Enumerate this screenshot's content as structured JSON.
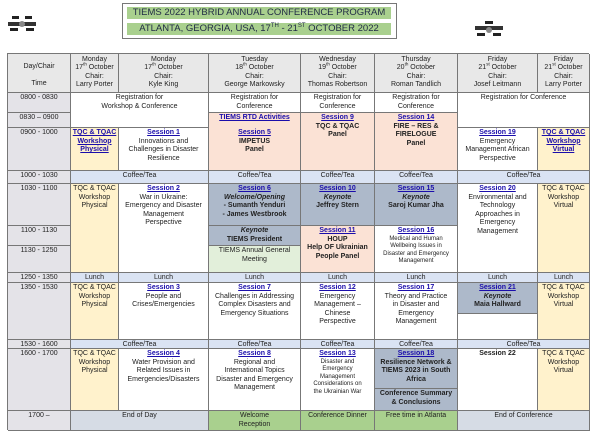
{
  "title": {
    "line1": "TIEMS 2022 HYBRID ANNUAL CONFERENCE PROGRAM",
    "line2_a": "ATLANTA, GEORGIA, USA, 17",
    "line2_sup1": "TH",
    "line2_b": " - 21",
    "line2_sup2": "ST",
    "line2_c": " OCTOBER 2022"
  },
  "colors": {
    "session_link": "#1a0dab",
    "workshop": "#fff2cc",
    "panel": "#fbe2d5",
    "keynote": "#adb9ca",
    "coffee": "#dae3f3",
    "social": "#a9d08e",
    "title_bar": "#a9d08e"
  },
  "header": {
    "corner": {
      "top": "Day/Chair",
      "bottom": "Time"
    },
    "days": [
      {
        "day": "Monday",
        "num": "17",
        "sfx": "th",
        "month": " October",
        "chair_label": "Chair:",
        "chair": "Larry Porter"
      },
      {
        "day": "Monday",
        "num": "17",
        "sfx": "th",
        "month": " October",
        "chair_label": "Chair:",
        "chair": "Kyle King"
      },
      {
        "day": "Tuesday",
        "num": "18",
        "sfx": "th",
        "month": " October",
        "chair_label": "Chair:",
        "chair": "George Markowsky"
      },
      {
        "day": "Wednesday",
        "num": "19",
        "sfx": "th",
        "month": " October",
        "chair_label": "Chair:",
        "chair": "Thomas Robertson"
      },
      {
        "day": "Thursday",
        "num": "20",
        "sfx": "th",
        "month": " October",
        "chair_label": "Chair:",
        "chair": "Roman Tandlich"
      },
      {
        "day": "Friday",
        "num": "21",
        "sfx": "st",
        "month": " October",
        "chair_label": "Chair:",
        "chair": "Josef Leitmann"
      },
      {
        "day": "Friday",
        "num": "21",
        "sfx": "st",
        "month": " October",
        "chair_label": "Chair:",
        "chair": "Larry Porter"
      }
    ]
  },
  "times": [
    "0800 - 0830",
    "0830 – 0900",
    "0900 - 1000",
    "1000 - 1030",
    "1030 - 1100",
    "1100 - 1130",
    "1130 - 1250",
    "1250 - 1350",
    "1350 - 1530",
    "1530 - 1600",
    "1600 - 1700",
    "1700 –"
  ],
  "cells": {
    "reg_mon": {
      "text": "Registration for\nWorkshop & Conference"
    },
    "reg_tue": {
      "text": "Registration for\nConference"
    },
    "reg_wed": {
      "text": "Registration for\nConference"
    },
    "reg_thu": {
      "text": "Registration for\nConference"
    },
    "reg_fri": {
      "text": "Registration for Conference"
    },
    "rtd": {
      "link": "TIEMS RTD Activities"
    },
    "s5": {
      "link": "Session 5",
      "bold": "IMPETUS\nPanel"
    },
    "s9": {
      "link": "Session 9",
      "bold": "TQC & TQAC\nPanel"
    },
    "s14": {
      "link": "Session 14",
      "bold": "FIRE – RES &\nFIRELOGUE\nPanel"
    },
    "tqc_m_0900": {
      "link": "TQC & TQAC\nWorkshop\nPhysical"
    },
    "s1": {
      "link": "Session 1",
      "text": "Innovations and\nChallenges in Disaster\nResilience"
    },
    "s19": {
      "link": "Session 19",
      "text": "Emergency\nManagement African\nPerspective"
    },
    "tqc_f_0900": {
      "link": "TQC & TQAC\nWorkshop\nVirtual"
    },
    "coffee_mon_1": {
      "text": "Coffee/Tea"
    },
    "coffee_tue_1": {
      "text": "Coffee/Tea"
    },
    "coffee_wed_1": {
      "text": "Coffee/Tea"
    },
    "coffee_thu_1": {
      "text": "Coffee/Tea"
    },
    "coffee_fri_1": {
      "text": "Coffee/Tea"
    },
    "tqc_m_1030": {
      "text": "TQC & TQAC\nWorkshop\nPhysical"
    },
    "s2": {
      "link": "Session 2",
      "text": "War in Ukraine:\nEmergency and Disaster\nManagement\nPerspective"
    },
    "s6": {
      "link": "Session 6",
      "italic": "Welcome/Opening",
      "bold": "- Sumanth Yenduri\n- James Westbrook"
    },
    "tue_keynote": {
      "italic": "Keynote",
      "bold": "TIEMS President"
    },
    "agm": {
      "text": "TIEMS Annual General\nMeeting"
    },
    "s10": {
      "link": "Session 10",
      "italic": "Keynote",
      "bold": "Jeffrey Stern"
    },
    "s11": {
      "link": "Session 11",
      "bold": "HOUP\nHelp OF Ukrainian\nPeople Panel"
    },
    "s15": {
      "link": "Session 15",
      "italic": "Keynote",
      "bold": "Saroj Kumar Jha"
    },
    "s16": {
      "link": "Session 16",
      "small": "Medical and Human\nWellbeing Issues in\nDisaster and Emergency\nManagement"
    },
    "s20": {
      "link": "Session 20",
      "text": "Environmental and\nTechnology\nApproaches in\nEmergency\nManagement"
    },
    "tqc_f_1030": {
      "text": "TQC & TQAC\nWorkshop\nVirtual"
    },
    "lunch_m1": {
      "text": "Lunch"
    },
    "lunch_m2": {
      "text": "Lunch"
    },
    "lunch_tu": {
      "text": "Lunch"
    },
    "lunch_w": {
      "text": "Lunch"
    },
    "lunch_th": {
      "text": "Lunch"
    },
    "lunch_f1": {
      "text": "Lunch"
    },
    "lunch_f2": {
      "text": "Lunch"
    },
    "tqc_m_1350": {
      "text": "TQC & TQAC\nWorkshop\nPhysical"
    },
    "s3": {
      "link": "Session 3",
      "text": "People and\nCrises/Emergencies"
    },
    "s7": {
      "link": "Session 7",
      "text": "Challenges in Addressing\nComplex Disasters and\nEmergency Situations"
    },
    "s12": {
      "link": "Session 12",
      "text": "Emergency\nManagement –\nChinese\nPerspective"
    },
    "s17": {
      "link": "Session 17",
      "text": "Theory and Practice\nin Disaster and\nEmergency\nManagement"
    },
    "s21": {
      "link": "Session 21",
      "italic": "Keynote",
      "bold": "Maia Hallward"
    },
    "empty_f1_1350": {},
    "tqc_f_1350": {
      "text": "TQC & TQAC\nWorkshop\nVirtual"
    },
    "coffee_mon_2": {
      "text": "Coffee/Tea"
    },
    "coffee_tue_2": {
      "text": "Coffee/Tea"
    },
    "coffee_wed_2": {
      "text": "Coffee/Tea"
    },
    "coffee_thu_2": {
      "text": "Coffee/Tea"
    },
    "coffee_fri_2": {
      "text": "Coffee/Tea"
    },
    "tqc_m_1600": {
      "text": "TQC & TQAC\nWorkshop\nPhysical"
    },
    "s4": {
      "link": "Session 4",
      "text": "Water Provision and\nRelated Issues in\nEmergencies/Disasters"
    },
    "s8": {
      "link": "Session 8",
      "text": "Regional and\nInternational Topics\nDisaster and Emergency\nManagement"
    },
    "s13": {
      "link": "Session 13",
      "small": "Disaster and\nEmergency\nManagement\nConsiderations on\nthe Ukrainian War"
    },
    "s18": {
      "link": "Session 18",
      "bold": "Resilience Network &\nTIEMS 2023 in South\nAfrica"
    },
    "summary": {
      "bold": "Conference Summary\n& Conclusions"
    },
    "s22": {
      "bold": "Session 22"
    },
    "tqc_f_1600": {
      "text": "TQC & TQAC\nWorkshop\nVirtual"
    },
    "end_day": {
      "text": "End of Day"
    },
    "welcome": {
      "text": "Welcome\nReception"
    },
    "dinner": {
      "text": "Conference Dinner"
    },
    "free": {
      "text": "Free time in Atlanta"
    },
    "end_conf": {
      "text": "End of Conference"
    }
  }
}
